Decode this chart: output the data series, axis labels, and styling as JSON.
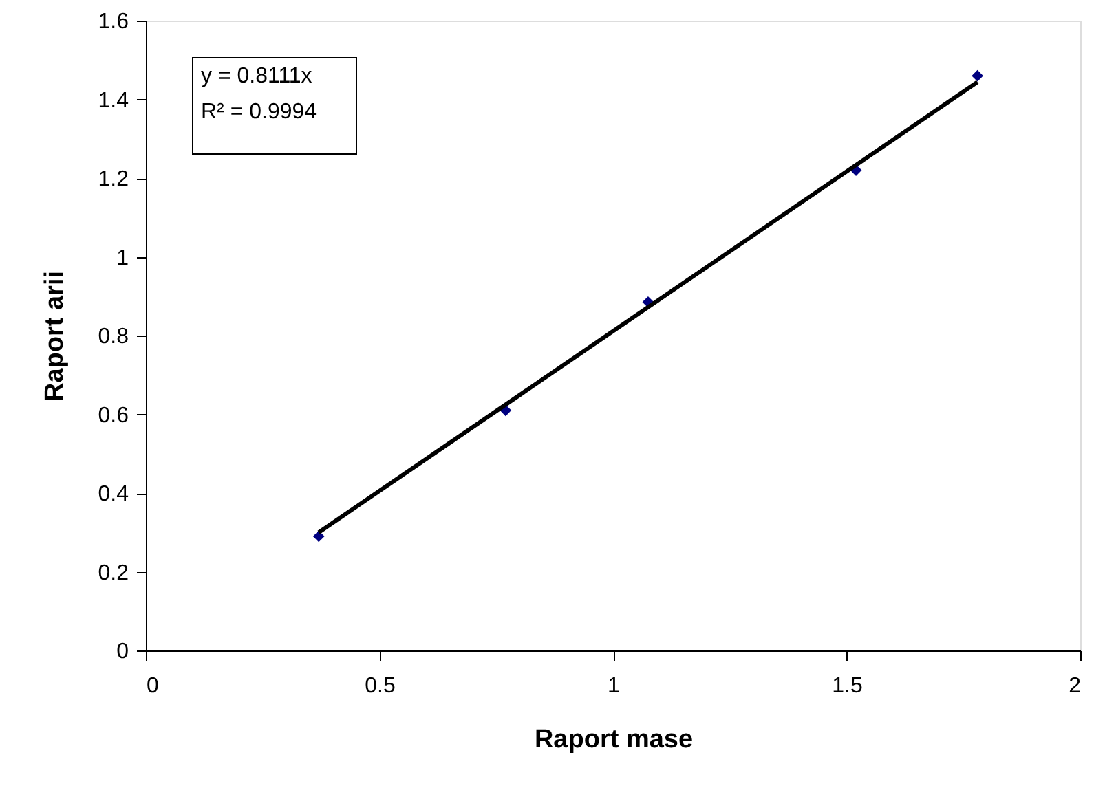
{
  "chart_data": {
    "type": "scatter",
    "xlabel": "Raport mase",
    "ylabel": "Raport arii",
    "x": [
      0.37,
      0.77,
      1.075,
      1.52,
      1.78
    ],
    "series": [
      {
        "color": "#000080",
        "marker": "diamond",
        "values": [
          0.29,
          0.61,
          0.885,
          1.22,
          1.46
        ]
      },
      {
        "type": "line",
        "color": "#000000",
        "marker": "none",
        "x": [
          0.37,
          1.78
        ],
        "values": [
          0.3,
          1.444
        ]
      }
    ],
    "line_style": "solid",
    "xlim": [
      0,
      2
    ],
    "xticks": [
      0,
      0.5,
      1,
      1.5,
      2
    ],
    "ylim": [
      0,
      1.6
    ],
    "yticks": [
      0,
      0.2,
      0.4,
      0.6,
      0.8,
      1,
      1.2,
      1.4,
      1.6
    ],
    "grid": false,
    "annotations": [
      "y = 0.8111x",
      "R² = 0.9994"
    ]
  }
}
